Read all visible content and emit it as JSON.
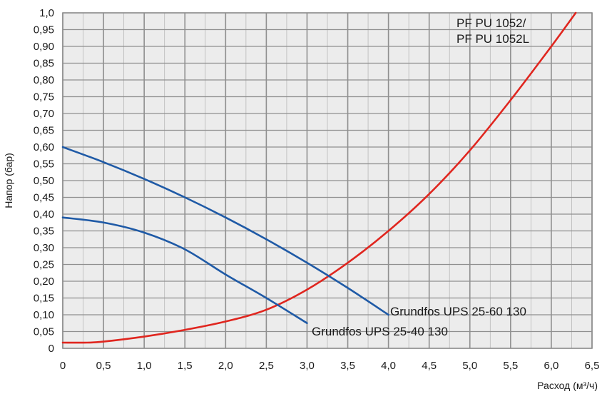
{
  "chart_data": {
    "type": "line",
    "xlabel": "Расход (м³/ч)",
    "ylabel": "Напор (бар)",
    "xlim": [
      0,
      6.5
    ],
    "ylim": [
      0,
      1.0
    ],
    "grid": true,
    "x_ticks": [
      "0",
      "0,5",
      "1,0",
      "1,5",
      "2,0",
      "2,5",
      "3,0",
      "3,5",
      "4,0",
      "4,5",
      "5,0",
      "5,5",
      "6,0",
      "6,5"
    ],
    "y_ticks": [
      "0",
      "0,05",
      "0,10",
      "0,15",
      "0,20",
      "0,25",
      "0,30",
      "0,35",
      "0,40",
      "0,45",
      "0,50",
      "0,55",
      "0,60",
      "0,65",
      "0,70",
      "0,75",
      "0,80",
      "0,85",
      "0,90",
      "0,95",
      "1,0"
    ],
    "series": [
      {
        "name": "PF PU 1052/\nPF PU 1052L",
        "name_lines": [
          "PF PU 1052/",
          "PF PU 1052L"
        ],
        "color": "#e0261f",
        "points": [
          [
            0,
            0.017
          ],
          [
            0.3,
            0.017
          ],
          [
            0.5,
            0.02
          ],
          [
            1.0,
            0.035
          ],
          [
            1.5,
            0.055
          ],
          [
            2.0,
            0.08
          ],
          [
            2.5,
            0.115
          ],
          [
            3.0,
            0.175
          ],
          [
            3.5,
            0.255
          ],
          [
            4.0,
            0.35
          ],
          [
            4.5,
            0.46
          ],
          [
            5.0,
            0.59
          ],
          [
            5.5,
            0.74
          ],
          [
            6.0,
            0.9
          ],
          [
            6.3,
            1.0
          ]
        ]
      },
      {
        "name": "Grundfos UPS 25-60 130",
        "color": "#1f5aa6",
        "points": [
          [
            0,
            0.6
          ],
          [
            0.5,
            0.555
          ],
          [
            1.0,
            0.505
          ],
          [
            1.5,
            0.45
          ],
          [
            2.0,
            0.39
          ],
          [
            2.5,
            0.325
          ],
          [
            3.0,
            0.255
          ],
          [
            3.5,
            0.18
          ],
          [
            4.0,
            0.1
          ]
        ]
      },
      {
        "name": "Grundfos UPS 25-40 130",
        "color": "#1f5aa6",
        "points": [
          [
            0,
            0.39
          ],
          [
            0.5,
            0.375
          ],
          [
            1.0,
            0.345
          ],
          [
            1.5,
            0.295
          ],
          [
            2.0,
            0.22
          ],
          [
            2.5,
            0.15
          ],
          [
            3.0,
            0.075
          ]
        ]
      }
    ]
  },
  "colors": {
    "plot_background": "#ececec",
    "minor_grid": "#b8b8b8",
    "major_grid": "#8f8f8f"
  }
}
